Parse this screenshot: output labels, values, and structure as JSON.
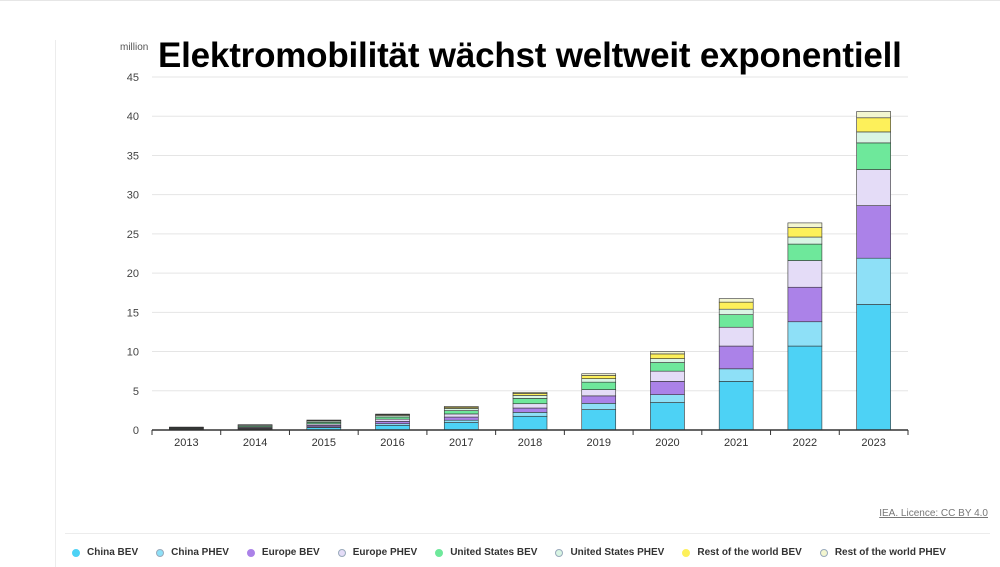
{
  "title": "Elektromobilität wächst weltweit exponentiell",
  "source": "IEA. Licence: CC BY 4.0",
  "chart_data": {
    "type": "bar",
    "stacked": true,
    "unit_label": "million",
    "ylim": [
      0,
      45
    ],
    "yticks": [
      0,
      5,
      10,
      15,
      20,
      25,
      30,
      35,
      40,
      45
    ],
    "grid": true,
    "legend_position": "bottom",
    "categories": [
      "2013",
      "2014",
      "2015",
      "2016",
      "2017",
      "2018",
      "2019",
      "2020",
      "2021",
      "2022",
      "2023"
    ],
    "series": [
      {
        "name": "China BEV",
        "color": "#4dd2f5",
        "values": [
          0.05,
          0.1,
          0.3,
          0.6,
          0.95,
          1.75,
          2.6,
          3.5,
          6.2,
          10.7,
          16.0
        ]
      },
      {
        "name": "China PHEV",
        "color": "#8ee0f7",
        "values": [
          0.02,
          0.05,
          0.1,
          0.2,
          0.3,
          0.5,
          0.8,
          1.0,
          1.6,
          3.1,
          5.9
        ]
      },
      {
        "name": "Europe BEV",
        "color": "#ab82e8",
        "values": [
          0.06,
          0.1,
          0.2,
          0.3,
          0.4,
          0.55,
          0.95,
          1.7,
          2.9,
          4.4,
          6.7
        ]
      },
      {
        "name": "Europe PHEV",
        "color": "#e4dcf7",
        "values": [
          0.05,
          0.1,
          0.18,
          0.28,
          0.4,
          0.55,
          0.8,
          1.3,
          2.4,
          3.4,
          4.6
        ]
      },
      {
        "name": "United States BEV",
        "color": "#6ee89b",
        "values": [
          0.08,
          0.13,
          0.2,
          0.28,
          0.42,
          0.68,
          0.95,
          1.1,
          1.6,
          2.1,
          3.4
        ]
      },
      {
        "name": "United States PHEV",
        "color": "#d9f5e4",
        "values": [
          0.07,
          0.12,
          0.16,
          0.2,
          0.28,
          0.38,
          0.45,
          0.5,
          0.7,
          0.9,
          1.4
        ]
      },
      {
        "name": "Rest of the world BEV",
        "color": "#fdf05a",
        "values": [
          0.02,
          0.05,
          0.08,
          0.1,
          0.15,
          0.25,
          0.4,
          0.6,
          0.9,
          1.2,
          1.8
        ]
      },
      {
        "name": "Rest of the world PHEV",
        "color": "#f3f6d0",
        "values": [
          0.02,
          0.03,
          0.05,
          0.07,
          0.1,
          0.15,
          0.22,
          0.3,
          0.45,
          0.6,
          0.8
        ]
      }
    ]
  }
}
